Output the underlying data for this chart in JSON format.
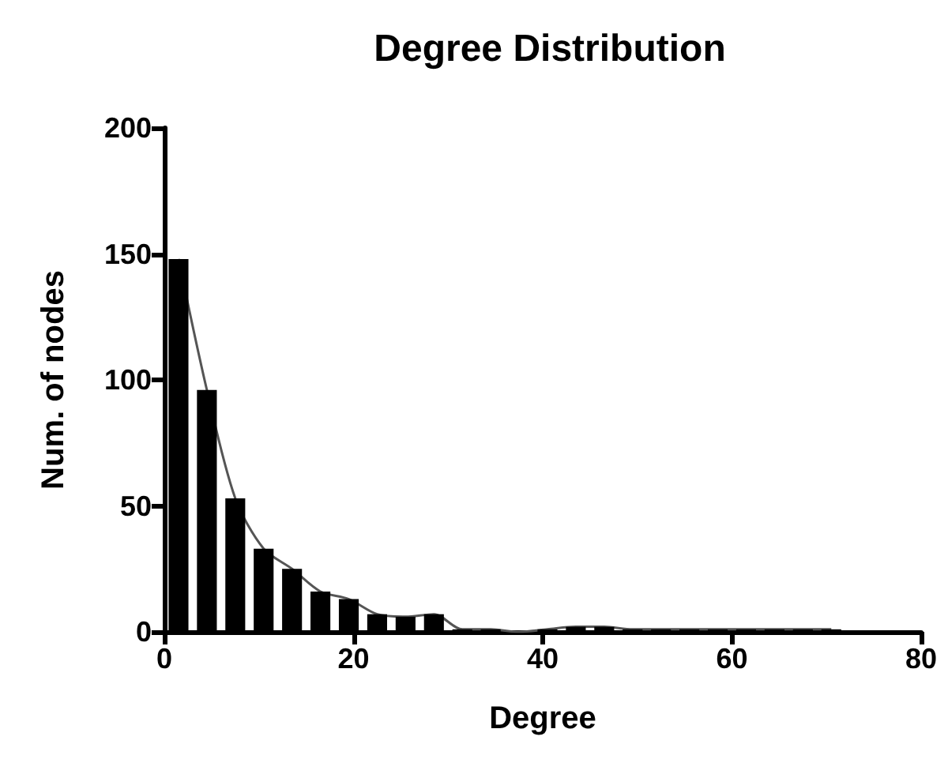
{
  "chart_data": {
    "type": "histogram",
    "title": "Degree Distribution",
    "xlabel": "Degree",
    "ylabel": "Num. of nodes",
    "bins": [
      0,
      3,
      6,
      9,
      12,
      15,
      18,
      21,
      24,
      27,
      30,
      33,
      36,
      39,
      42,
      45,
      48,
      51,
      54,
      57,
      60,
      63,
      66,
      69,
      72
    ],
    "series": [
      {
        "color": "#000000",
        "values": [
          148,
          96,
          53,
          33,
          25,
          16,
          13,
          7,
          6,
          7,
          1,
          1,
          0,
          1,
          2,
          2,
          1,
          1,
          1,
          1,
          1,
          1,
          1,
          1
        ]
      },
      {
        "type": "line",
        "color": "#555555",
        "marker": "none",
        "x": [
          1.5,
          4.5,
          7.5,
          10.5,
          13.5,
          16.5,
          19.5,
          22.5,
          25.5,
          28.5,
          31.5,
          34.5,
          37.5,
          40.5,
          43.5,
          46.5,
          49.5,
          52.5,
          55.5,
          58.5,
          61.5,
          64.5,
          67.5,
          70.5
        ],
        "values": [
          148,
          96,
          53,
          33,
          25,
          16,
          13,
          7,
          6,
          7,
          1,
          1,
          0,
          1,
          2,
          2,
          1,
          1,
          1,
          1,
          1,
          1,
          1,
          1
        ]
      }
    ],
    "xlim": [
      0,
      80
    ],
    "xticks": [
      0,
      20,
      40,
      60,
      80
    ],
    "ylim": [
      0,
      200
    ],
    "yticks": [
      0,
      50,
      100,
      150,
      200
    ],
    "grid": false
  }
}
